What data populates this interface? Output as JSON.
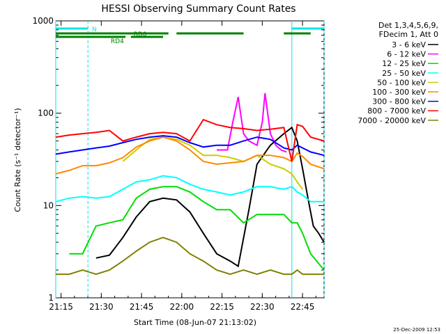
{
  "chart_data": {
    "type": "line",
    "title": "HESSI Observing Summary Count Rates",
    "xlabel": "Start Time (08-Jun-07 21:13:02)",
    "ylabel": "Count Rate (s⁻¹ detector⁻¹)",
    "yscale": "log",
    "ylim": [
      1,
      1000
    ],
    "xlim_minutes": [
      0,
      100
    ],
    "x_ticks": [
      "21:15",
      "21:30",
      "21:45",
      "22:00",
      "22:15",
      "22:30",
      "22:45"
    ],
    "y_ticks": [
      "1",
      "10",
      "100",
      "1000"
    ],
    "legend_header": [
      "Det 1,3,4,5,6,9,",
      "FDecim 1, Att 0"
    ],
    "legend_position": "top-right, outside plot",
    "series": [
      {
        "name": "3 - 6 keV",
        "color": "#000000",
        "x": [
          0,
          5,
          10,
          15,
          20,
          25,
          30,
          35,
          40,
          45,
          50,
          55,
          60,
          65,
          68,
          72,
          75,
          80,
          85,
          88,
          90,
          92,
          94,
          96,
          98,
          100
        ],
        "y": [
          null,
          null,
          null,
          2.7,
          2.9,
          4.5,
          7.5,
          11,
          12,
          11.5,
          8.5,
          5,
          3,
          2.5,
          2.2,
          9,
          28,
          45,
          60,
          70,
          50,
          25,
          12,
          6,
          5,
          4
        ]
      },
      {
        "name": "6 - 12 keV",
        "color": "#ff00ff",
        "x": [
          60,
          64,
          66,
          68,
          70,
          72,
          75,
          77,
          78,
          80,
          82,
          84,
          86
        ],
        "y": [
          40,
          40,
          80,
          150,
          60,
          50,
          45,
          80,
          165,
          60,
          45,
          40,
          38
        ]
      },
      {
        "name": "12 - 25 keV",
        "color": "#00dd00",
        "x": [
          5,
          10,
          15,
          20,
          25,
          30,
          35,
          40,
          45,
          50,
          55,
          60,
          65,
          70,
          75,
          80,
          85,
          88,
          90,
          92,
          95,
          100
        ],
        "y": [
          3,
          3,
          6,
          6.5,
          7,
          12,
          15,
          16,
          16,
          14,
          11,
          9,
          9,
          6.5,
          8,
          8,
          8,
          6.5,
          6.5,
          5,
          3,
          2
        ]
      },
      {
        "name": "25 - 50 keV",
        "color": "#00ffff",
        "x": [
          0,
          5,
          10,
          15,
          20,
          25,
          30,
          35,
          40,
          45,
          50,
          55,
          60,
          65,
          70,
          75,
          80,
          85,
          88,
          90,
          92,
          95,
          100
        ],
        "y": [
          11,
          12,
          12.5,
          12,
          12.5,
          15,
          18,
          19,
          21,
          20,
          17,
          15,
          14,
          13,
          14,
          16,
          16,
          15,
          16,
          14,
          13,
          11,
          11
        ]
      },
      {
        "name": "50 - 100 keV",
        "color": "#cccc00",
        "x": [
          25,
          30,
          35,
          40,
          45,
          50,
          55,
          60,
          65,
          70,
          75,
          80,
          85,
          88,
          90,
          92
        ],
        "y": [
          30,
          40,
          52,
          55,
          52,
          45,
          35,
          35,
          33,
          30,
          35,
          28,
          25,
          22,
          18,
          15
        ]
      },
      {
        "name": "100 - 300 keV",
        "color": "#ff8800",
        "x": [
          0,
          5,
          10,
          15,
          20,
          25,
          30,
          35,
          40,
          45,
          50,
          55,
          60,
          65,
          70,
          75,
          80,
          85,
          88,
          90,
          92,
          95,
          100
        ],
        "y": [
          22,
          24,
          27,
          27,
          29,
          33,
          43,
          50,
          55,
          50,
          40,
          30,
          28,
          29,
          30,
          35,
          35,
          33,
          30,
          37,
          34,
          28,
          25
        ]
      },
      {
        "name": "300 - 800 keV",
        "color": "#0000ff",
        "x": [
          0,
          5,
          10,
          15,
          20,
          25,
          30,
          35,
          40,
          45,
          50,
          55,
          60,
          65,
          70,
          75,
          80,
          85,
          88,
          90,
          92,
          95,
          100
        ],
        "y": [
          36,
          38,
          40,
          42,
          44,
          48,
          52,
          55,
          57,
          55,
          48,
          43,
          45,
          45,
          50,
          55,
          52,
          42,
          40,
          45,
          42,
          38,
          35
        ]
      },
      {
        "name": "800 - 7000 keV",
        "color": "#ff0000",
        "x": [
          0,
          5,
          10,
          15,
          20,
          25,
          30,
          35,
          40,
          45,
          50,
          55,
          60,
          65,
          70,
          75,
          80,
          85,
          88,
          90,
          92,
          95,
          100
        ],
        "y": [
          55,
          58,
          60,
          62,
          65,
          50,
          55,
          60,
          62,
          60,
          50,
          85,
          75,
          70,
          68,
          65,
          67,
          70,
          30,
          75,
          72,
          55,
          50
        ]
      },
      {
        "name": "7000 - 20000 keV",
        "color": "#808000",
        "x": [
          0,
          5,
          10,
          15,
          20,
          25,
          30,
          35,
          40,
          45,
          50,
          55,
          60,
          65,
          70,
          75,
          80,
          85,
          88,
          90,
          92,
          95,
          100
        ],
        "y": [
          1.8,
          1.8,
          2,
          1.8,
          2,
          2.5,
          3.2,
          4,
          4.5,
          4,
          3,
          2.5,
          2,
          1.8,
          2,
          1.8,
          2,
          1.8,
          1.8,
          2,
          1.8,
          1.8,
          1.8
        ]
      }
    ],
    "annotations": [
      {
        "label": "N",
        "color": "#00e5e5",
        "intervals": [
          [
            0,
            12
          ],
          [
            88,
            100
          ]
        ]
      },
      {
        "label": "RD0",
        "color": "#008000",
        "intervals": [
          [
            0,
            42
          ],
          [
            45,
            70
          ],
          [
            85,
            95
          ]
        ]
      },
      {
        "label": "RD4",
        "color": "#008000",
        "intervals": [
          [
            0,
            26
          ],
          [
            28,
            40
          ]
        ]
      }
    ],
    "vertical_markers": [
      {
        "x": 0,
        "style": "solid",
        "color": "#00e5e5"
      },
      {
        "x": 12,
        "style": "dashed",
        "color": "#00e5e5"
      },
      {
        "x": 88,
        "style": "solid",
        "color": "#00e5e5"
      },
      {
        "x": 100,
        "style": "dashed",
        "color": "#00e5e5"
      }
    ]
  },
  "timestamp": "25-Dec-2009 12:53"
}
